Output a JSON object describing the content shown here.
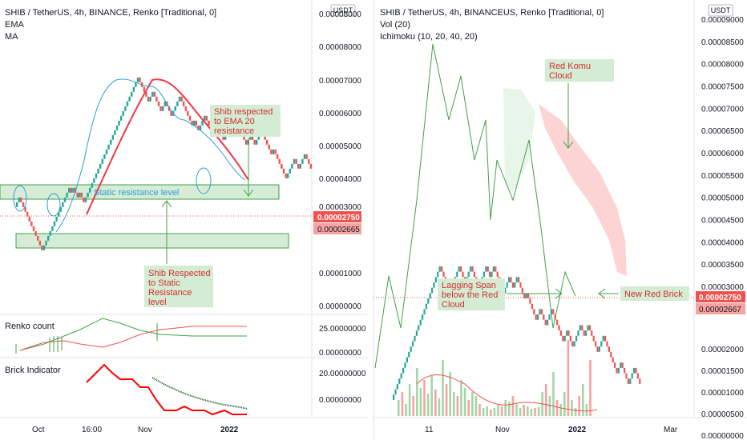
{
  "colors": {
    "up": "#26a69a",
    "down": "#ef5350",
    "ema": "#2a9fd6",
    "ma": "#f23645",
    "lagging": "#43a047",
    "zone_fill": "#c8e6c9",
    "zone_stroke": "#43a047",
    "note_fill": "#d4ecd4",
    "note_text": "#d32f2f",
    "price_tag": "#ef5350",
    "price_tag_light": "#f7a3a2"
  },
  "left": {
    "header": {
      "title": "SHIB / TetherUS, 4h, BINANCE, Renko [Traditional, 0]",
      "indicator_1": "EMA",
      "indicator_2": "MA"
    },
    "currency_badge": "USDT",
    "price_axis": [
      "0.00008000",
      "0.00007000",
      "0.00006000",
      "0.00005000",
      "0.00004000",
      "0.00003000",
      "0.00001000",
      "0.00000000"
    ],
    "price_tag_current": "0.00002750",
    "price_tag_prev": "0.00002665",
    "zone_label": "Static resistance level",
    "note_ema": "Shib respected to EMA 20 resistance",
    "note_static": "Shib Respected to Static Resistance level",
    "renko_count": {
      "title": "Renko count",
      "axis": [
        "25.00000000",
        "0.00000000"
      ]
    },
    "brick_indicator": {
      "title": "Brick Indicator",
      "axis": [
        "20.00000000",
        "0.00000000"
      ]
    },
    "time_axis": [
      "Oct",
      "16:00",
      "Nov",
      "2022"
    ]
  },
  "right": {
    "header": {
      "title": "SHIB / TetherUS, 4h, BINANCEUS, Renko [Traditional, 0]",
      "indicator_1": "Vol (20)",
      "indicator_2": "Ichimoku (10, 20, 40, 20)"
    },
    "currency_badge": "USDT",
    "price_axis": [
      "0.00009000",
      "0.00008500",
      "0.00008000",
      "0.00007500",
      "0.00007000",
      "0.00006500",
      "0.00006000",
      "0.00005500",
      "0.00005000",
      "0.00004500",
      "0.00004000",
      "0.00003500",
      "0.00003000",
      "0.00002000",
      "0.00001500",
      "0.00001000",
      "0.00000500",
      "0.00000000"
    ],
    "price_tag_current": "0.00002750",
    "price_tag_prev": "0.00002667",
    "note_cloud": "Red Komu Cloud",
    "note_lagging": "Lagging Span below the Red Cloud",
    "note_brick": "New Red Brick",
    "time_axis": [
      "11",
      "Nov",
      "2022",
      "Mar"
    ]
  },
  "chart_data": [
    {
      "type": "renko",
      "title": "SHIB / TetherUS, 4h, BINANCE, Renko [Traditional, 0]",
      "brick_size": 1.5e-06,
      "series": [
        {
          "name": "Renko",
          "bricks": [
            2,
            -11,
            13,
            -1,
            1,
            -2,
            1,
            -2,
            3,
            23,
            -5,
            2,
            -4,
            2,
            -3,
            4,
            -6,
            1,
            -2,
            3,
            -2,
            2,
            -5,
            4,
            -1,
            1,
            -5,
            2,
            -2,
            3,
            -5,
            1,
            -6,
            4,
            -2,
            3,
            -3
          ]
        },
        {
          "name": "EMA"
        },
        {
          "name": "MA"
        }
      ],
      "annotations": [
        "Static resistance level",
        "Shib respected to EMA 20 resistance",
        "Shib Respected to Static Resistance level"
      ],
      "yaxis_ticks": [
        8e-05,
        7e-05,
        6e-05,
        5e-05,
        4e-05,
        3e-05,
        1e-05,
        0.0
      ],
      "last_price": 2.75e-05
    },
    {
      "type": "renko",
      "title": "SHIB / TetherUS, 4h, BINANCEUS, Renko [Traditional, 0]",
      "brick_size": 1.2e-06,
      "series": [
        {
          "name": "Renko",
          "bricks": [
            25,
            -5,
            5,
            -3,
            3,
            -4,
            4,
            -2,
            2,
            -5,
            3,
            -2,
            2,
            -4,
            1,
            -5,
            2,
            -3,
            3,
            -6,
            2,
            -3,
            4,
            -2,
            2,
            -5,
            3,
            -7,
            2,
            -4,
            3,
            -3
          ]
        },
        {
          "name": "Vol (20)"
        },
        {
          "name": "Ichimoku (10, 20, 40, 20)"
        }
      ],
      "annotations": [
        "Red Komu Cloud",
        "Lagging Span below the Red Cloud",
        "New Red Brick"
      ],
      "yaxis_ticks": [
        9e-05,
        8.5e-05,
        8e-05,
        7.5e-05,
        7e-05,
        6.5e-05,
        6e-05,
        5.5e-05,
        5e-05,
        4.5e-05,
        4e-05,
        3.5e-05,
        3e-05,
        2e-05,
        1.5e-05,
        1e-05,
        5e-06,
        0.0
      ],
      "last_price": 2.75e-05
    }
  ]
}
